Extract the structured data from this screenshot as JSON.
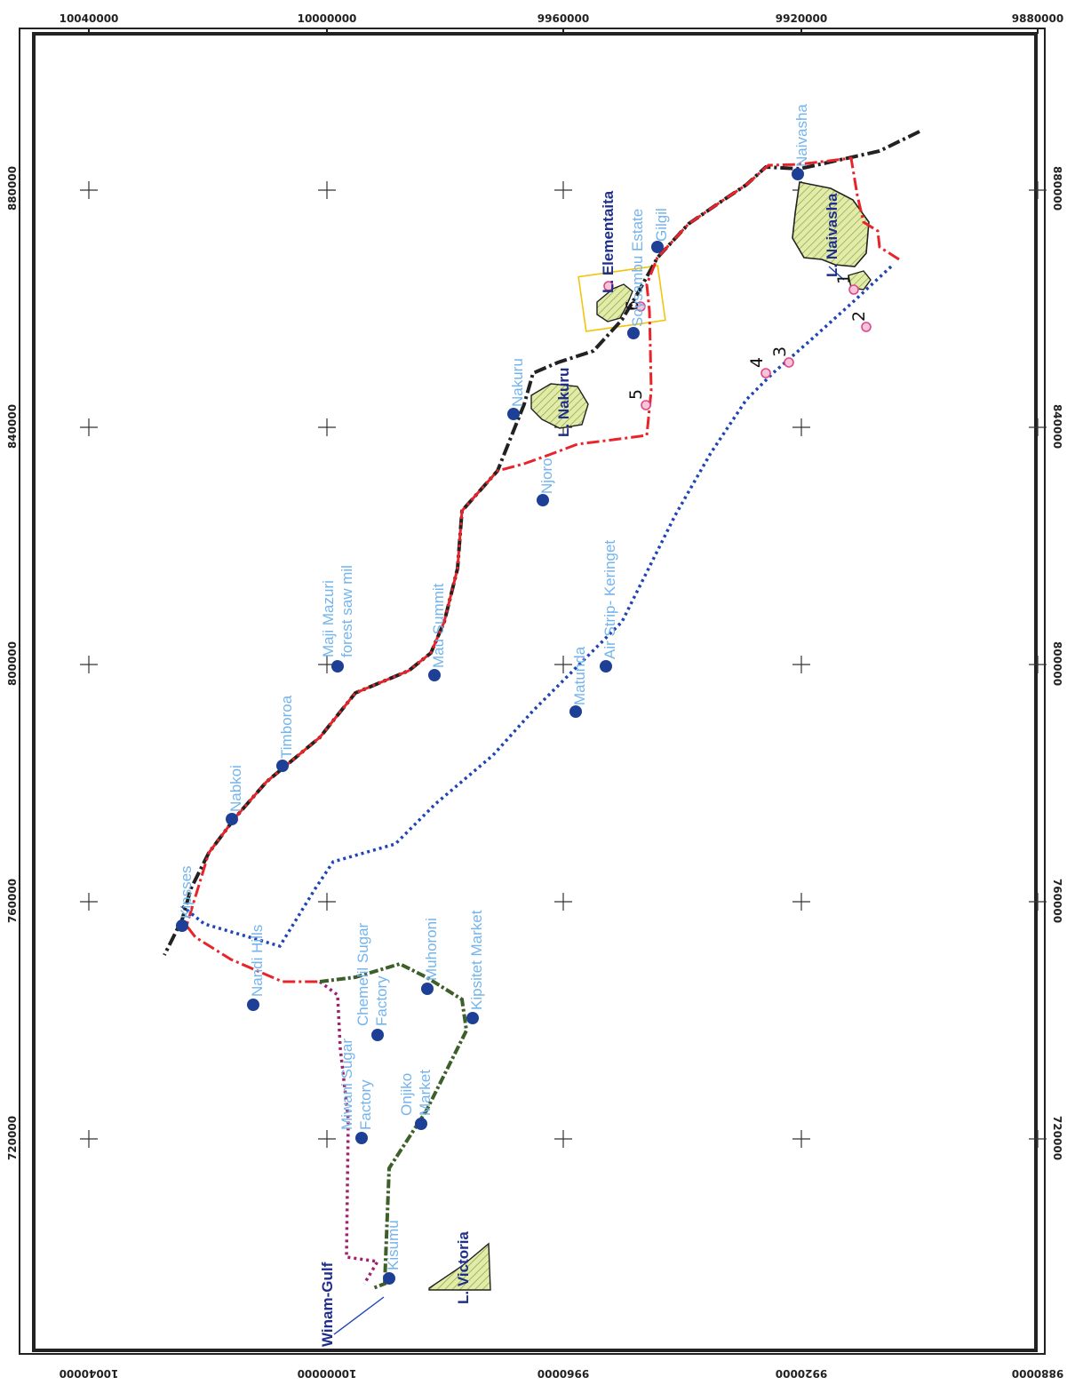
{
  "top_ticks": [
    "10040000",
    "10000000",
    "9960000",
    "9920000",
    "9880000"
  ],
  "bottom_ticks": [
    "10040000",
    "10000000",
    "9960000",
    "9920000",
    "9880000"
  ],
  "left_ticks": [
    "880000",
    "840000",
    "800000",
    "760000",
    "720000"
  ],
  "right_ticks": [
    "880000",
    "840000",
    "800000",
    "760000",
    "720000"
  ],
  "towns": [
    {
      "name": "Naivasha"
    },
    {
      "name": "Gilgil"
    },
    {
      "name": "Soysambu Estate"
    },
    {
      "name": "Nakuru"
    },
    {
      "name": "Njoro"
    },
    {
      "name": "Air Strip- Keringet"
    },
    {
      "name": "Mau Summit"
    },
    {
      "name": "Matunda"
    },
    {
      "name": "Maji Mazuri"
    },
    {
      "name": "forest saw mil"
    },
    {
      "name": "Timboroa"
    },
    {
      "name": "Nabkoi"
    },
    {
      "name": "Kipsses"
    },
    {
      "name": "Nandi Hills"
    },
    {
      "name": "Chemelil Sugar"
    },
    {
      "name": "Factory"
    },
    {
      "name": "Muhoroni"
    },
    {
      "name": "Kipsitet Market"
    },
    {
      "name": "Miwani Sugar"
    },
    {
      "name": "Factory"
    },
    {
      "name": "Onjiko"
    },
    {
      "name": "Market"
    },
    {
      "name": "Kisumu"
    }
  ],
  "lakes": [
    {
      "name": "L. Naivasha"
    },
    {
      "name": "L. Elementaita"
    },
    {
      "name": "L. Nakuru"
    },
    {
      "name": "L. Victoria"
    },
    {
      "name": "Winam-Gulf"
    }
  ],
  "sample_points": [
    "1",
    "2",
    "3",
    "4",
    "5",
    "6"
  ],
  "colors": {
    "route_red": "#e8232a",
    "route_black": "#222222",
    "route_blue": "#1f44b5",
    "route_purple": "#a0226e",
    "route_green": "#3d5f2a",
    "town_marker": "#1d3f95",
    "town_label": "#74b4ec",
    "lake_fill": "#dde8a6",
    "lake_label": "#1f2f8a",
    "sample_ring": "#e0468a"
  }
}
